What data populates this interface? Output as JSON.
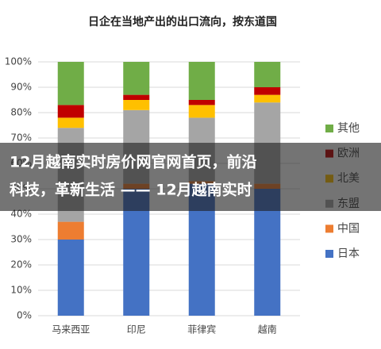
{
  "chart_data": {
    "type": "stacked_bar",
    "title": "日企在当地产出的出口流向，按东道国",
    "categories": [
      "马来西亚",
      "印尼",
      "菲律宾",
      "越南"
    ],
    "series": [
      {
        "name": "日本",
        "color": "#4472c4",
        "values": [
          30,
          50,
          52,
          50
        ]
      },
      {
        "name": "中国",
        "color": "#ed7d31",
        "values": [
          7,
          2,
          1,
          2
        ]
      },
      {
        "name": "东盟",
        "color": "#a5a5a5",
        "values": [
          37,
          29,
          25,
          32
        ]
      },
      {
        "name": "北美",
        "color": "#ffc000",
        "values": [
          4,
          4,
          5,
          3
        ]
      },
      {
        "name": "欧洲",
        "color": "#c00000",
        "values": [
          5,
          2,
          2,
          3
        ]
      },
      {
        "name": "其他",
        "color": "#70ad47",
        "values": [
          17,
          13,
          15,
          10
        ]
      }
    ],
    "ylim": [
      0,
      100
    ],
    "yticks": [
      {
        "value": 0,
        "label": "0%"
      },
      {
        "value": 10,
        "label": "10%"
      },
      {
        "value": 20,
        "label": "20%"
      },
      {
        "value": 30,
        "label": "30%"
      },
      {
        "value": 40,
        "label": "40%"
      },
      {
        "value": 50,
        "label": "50%"
      },
      {
        "value": 60,
        "label": "60%"
      },
      {
        "value": 70,
        "label": "70%"
      },
      {
        "value": 80,
        "label": "80%"
      },
      {
        "value": 90,
        "label": "90%"
      },
      {
        "value": 100,
        "label": "100%"
      }
    ],
    "grid": true
  },
  "overlay": {
    "lines": [
      "12月越南实时房价网官网首页，前沿",
      "科技，革新生活 —— 12月越南实时"
    ]
  }
}
